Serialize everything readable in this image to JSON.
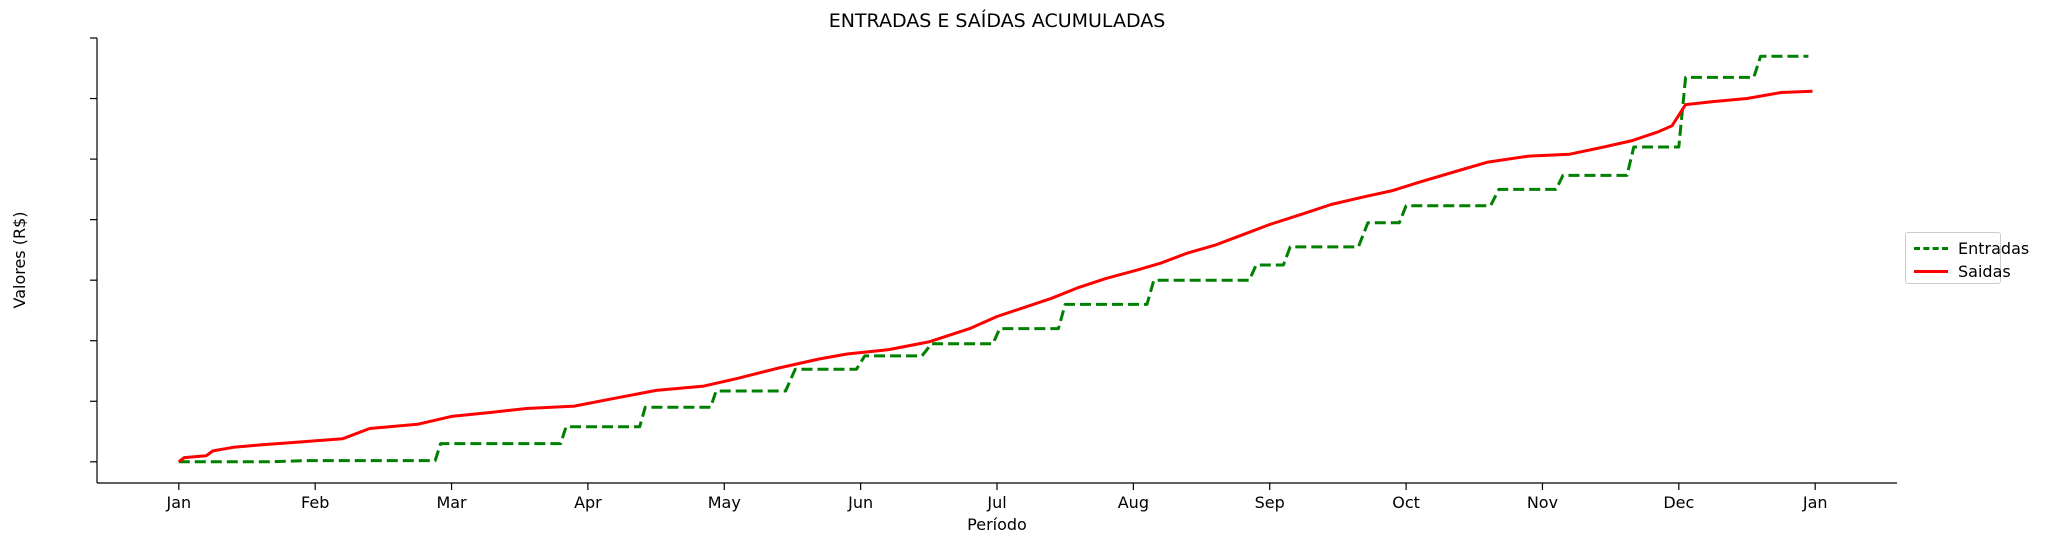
{
  "chart_data": {
    "type": "line",
    "title": "ENTRADAS E SAÍDAS ACUMULADAS",
    "xlabel": "Período",
    "ylabel": "Valores (R$)",
    "x_ticks": [
      "Jan",
      "Feb",
      "Mar",
      "Apr",
      "May",
      "Jun",
      "Jul",
      "Aug",
      "Sep",
      "Oct",
      "Nov",
      "Dec",
      "Jan"
    ],
    "x_range": [
      -0.6,
      12.6
    ],
    "y_range": [
      -0.35,
      7.0
    ],
    "y_ticks": [
      0,
      1,
      2,
      3,
      4,
      5,
      6,
      7
    ],
    "y_tick_labels_visible": false,
    "series": [
      {
        "name": "Entradas",
        "color": "#008000",
        "style": "dashed",
        "x": [
          0.0,
          0.65,
          0.95,
          0.97,
          1.88,
          1.92,
          2.8,
          2.84,
          3.38,
          3.42,
          3.9,
          3.94,
          4.45,
          4.52,
          4.97,
          5.03,
          5.45,
          5.52,
          5.97,
          6.02,
          6.45,
          6.5,
          7.1,
          7.15,
          7.85,
          7.9,
          8.1,
          8.15,
          8.65,
          8.72,
          8.95,
          9.0,
          9.62,
          9.68,
          10.1,
          10.15,
          10.62,
          10.67,
          11.0,
          11.05,
          11.55,
          11.6,
          11.95
        ],
        "y": [
          0.0,
          0.0,
          0.02,
          0.02,
          0.02,
          0.3,
          0.3,
          0.58,
          0.58,
          0.9,
          0.9,
          1.17,
          1.17,
          1.53,
          1.53,
          1.75,
          1.75,
          1.95,
          1.95,
          2.2,
          2.2,
          2.6,
          2.6,
          3.0,
          3.0,
          3.25,
          3.25,
          3.55,
          3.55,
          3.95,
          3.95,
          4.23,
          4.23,
          4.5,
          4.5,
          4.73,
          4.73,
          5.2,
          5.2,
          6.35,
          6.35,
          6.7,
          6.7
        ]
      },
      {
        "name": "Saidas",
        "color": "#ff0000",
        "style": "solid",
        "x": [
          0.0,
          0.04,
          0.2,
          0.25,
          0.4,
          0.6,
          0.85,
          1.2,
          1.4,
          1.75,
          2.0,
          2.3,
          2.55,
          2.9,
          3.2,
          3.5,
          3.85,
          4.1,
          4.4,
          4.7,
          4.9,
          5.2,
          5.5,
          5.8,
          6.0,
          6.2,
          6.4,
          6.6,
          6.8,
          7.0,
          7.2,
          7.4,
          7.6,
          7.8,
          8.0,
          8.25,
          8.45,
          8.7,
          8.9,
          9.1,
          9.4,
          9.6,
          9.9,
          10.2,
          10.45,
          10.65,
          10.85,
          10.95,
          11.05,
          11.25,
          11.5,
          11.75,
          11.98
        ],
        "y": [
          0.0,
          0.07,
          0.1,
          0.18,
          0.24,
          0.28,
          0.32,
          0.38,
          0.55,
          0.62,
          0.75,
          0.82,
          0.88,
          0.92,
          1.05,
          1.18,
          1.25,
          1.38,
          1.55,
          1.7,
          1.78,
          1.85,
          1.98,
          2.2,
          2.4,
          2.55,
          2.7,
          2.88,
          3.03,
          3.15,
          3.28,
          3.45,
          3.58,
          3.75,
          3.92,
          4.1,
          4.25,
          4.38,
          4.48,
          4.62,
          4.82,
          4.95,
          5.05,
          5.08,
          5.2,
          5.3,
          5.45,
          5.55,
          5.9,
          5.95,
          6.0,
          6.1,
          6.12
        ]
      }
    ],
    "legend": [
      "Entradas",
      "Saidas"
    ],
    "legend_position": "right",
    "grid": false
  }
}
